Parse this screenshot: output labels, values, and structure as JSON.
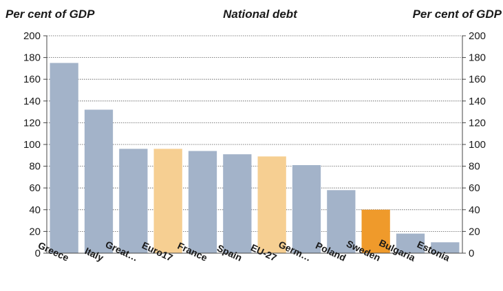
{
  "chart_data": {
    "type": "bar",
    "title": "National debt",
    "ylabel_left": "Per cent of GDP",
    "ylabel_right": "Per cent of GDP",
    "ylim": [
      0,
      200
    ],
    "yticks": [
      0,
      20,
      40,
      60,
      80,
      100,
      120,
      140,
      160,
      180,
      200
    ],
    "grid": true,
    "categories": [
      "Greece",
      "Italy",
      "Great…",
      "Euro17",
      "France",
      "Spain",
      "EU-27",
      "Germ…",
      "Poland",
      "Sweden",
      "Bulgaria",
      "Estonia"
    ],
    "values": [
      175,
      132,
      96,
      96,
      94,
      91,
      89,
      81,
      58,
      40,
      18,
      10
    ],
    "colors": [
      "#a3b3c9",
      "#a3b3c9",
      "#a3b3c9",
      "#f6cf92",
      "#a3b3c9",
      "#a3b3c9",
      "#f6cf92",
      "#a3b3c9",
      "#a3b3c9",
      "#ef9a2b",
      "#a3b3c9",
      "#a3b3c9"
    ]
  }
}
